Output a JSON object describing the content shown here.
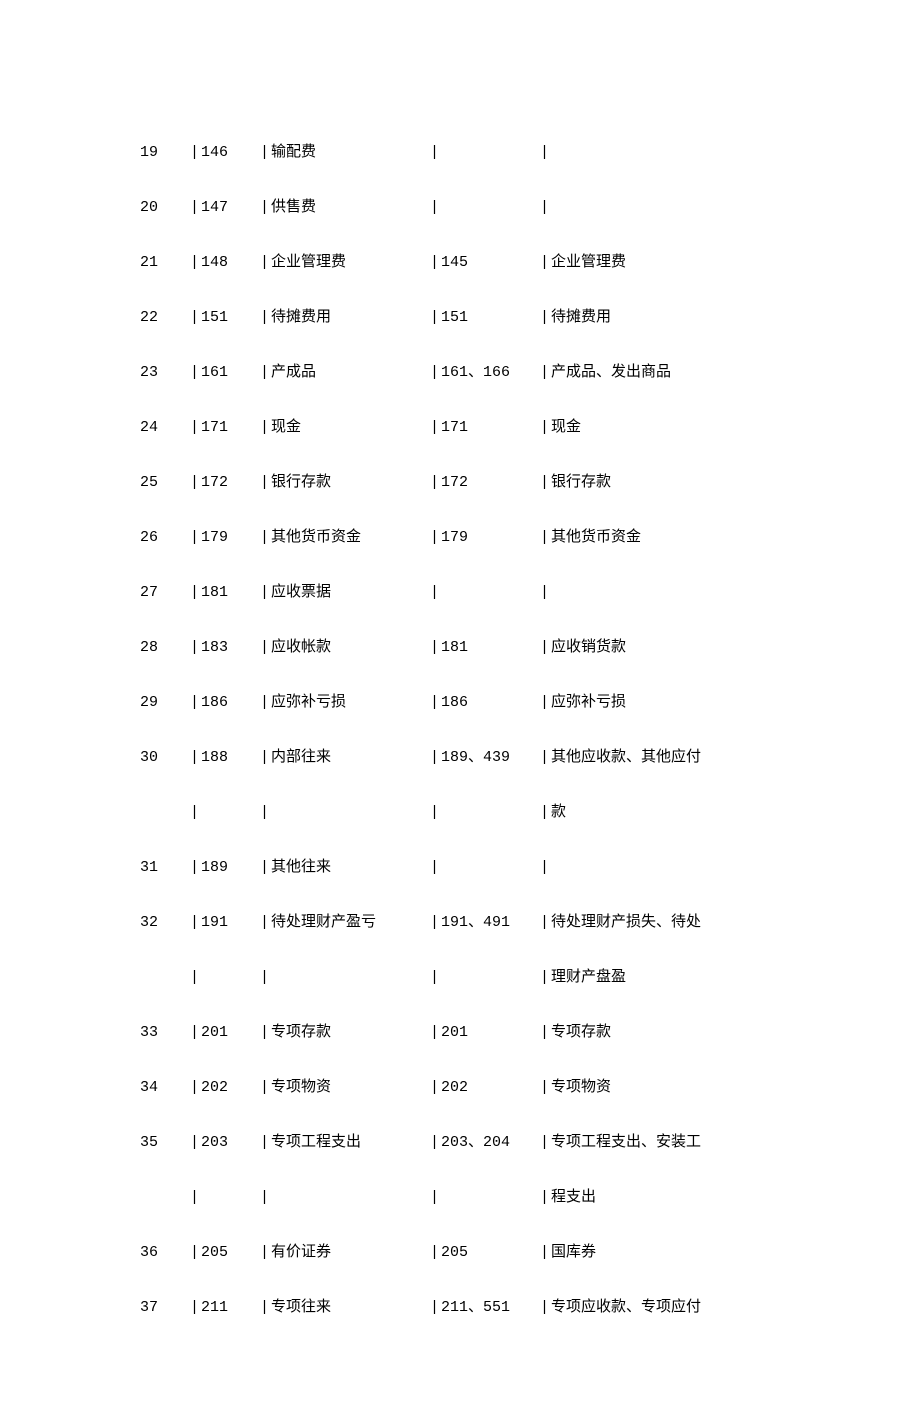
{
  "rows": [
    {
      "seq": "19",
      "code1": "146",
      "name1": "输配费",
      "code2": "",
      "name2": ""
    },
    {
      "seq": "20",
      "code1": "147",
      "name1": "供售费",
      "code2": "",
      "name2": ""
    },
    {
      "seq": "21",
      "code1": "148",
      "name1": "企业管理费",
      "code2": "145",
      "name2": "企业管理费"
    },
    {
      "seq": "22",
      "code1": "151",
      "name1": "待摊费用",
      "code2": "151",
      "name2": "待摊费用"
    },
    {
      "seq": "23",
      "code1": "161",
      "name1": "产成品",
      "code2": "161、166",
      "name2": "产成品、发出商品"
    },
    {
      "seq": "24",
      "code1": "171",
      "name1": "现金",
      "code2": "171",
      "name2": "现金"
    },
    {
      "seq": "25",
      "code1": "172",
      "name1": "银行存款",
      "code2": "172",
      "name2": "银行存款"
    },
    {
      "seq": "26",
      "code1": "179",
      "name1": "其他货币资金",
      "code2": "179",
      "name2": "其他货币资金"
    },
    {
      "seq": "27",
      "code1": "181",
      "name1": "应收票据",
      "code2": "",
      "name2": ""
    },
    {
      "seq": "28",
      "code1": "183",
      "name1": "应收帐款",
      "code2": "181",
      "name2": "应收销货款"
    },
    {
      "seq": "29",
      "code1": "186",
      "name1": "应弥补亏损",
      "code2": "186",
      "name2": "应弥补亏损"
    },
    {
      "seq": "30",
      "code1": "188",
      "name1": "内部往来",
      "code2": "189、439",
      "name2": "其他应收款、其他应付"
    },
    {
      "seq": "",
      "code1": "",
      "name1": "",
      "code2": "",
      "name2": "款"
    },
    {
      "seq": "31",
      "code1": "189",
      "name1": "其他往来",
      "code2": "",
      "name2": ""
    },
    {
      "seq": "32",
      "code1": "191",
      "name1": "待处理财产盈亏",
      "code2": "191、491",
      "name2": "待处理财产损失、待处"
    },
    {
      "seq": "",
      "code1": "",
      "name1": "",
      "code2": "",
      "name2": "理财产盘盈"
    },
    {
      "seq": "33",
      "code1": "201",
      "name1": "专项存款",
      "code2": "201",
      "name2": "专项存款"
    },
    {
      "seq": "34",
      "code1": "202",
      "name1": "专项物资",
      "code2": "202",
      "name2": "专项物资"
    },
    {
      "seq": "35",
      "code1": "203",
      "name1": "专项工程支出",
      "code2": "203、204",
      "name2": "专项工程支出、安装工"
    },
    {
      "seq": "",
      "code1": "",
      "name1": "",
      "code2": "",
      "name2": "程支出"
    },
    {
      "seq": "36",
      "code1": "205",
      "name1": "有价证券",
      "code2": "205",
      "name2": "国库券"
    },
    {
      "seq": "37",
      "code1": "211",
      "name1": "专项往来",
      "code2": "211、551",
      "name2": "专项应收款、专项应付"
    }
  ]
}
